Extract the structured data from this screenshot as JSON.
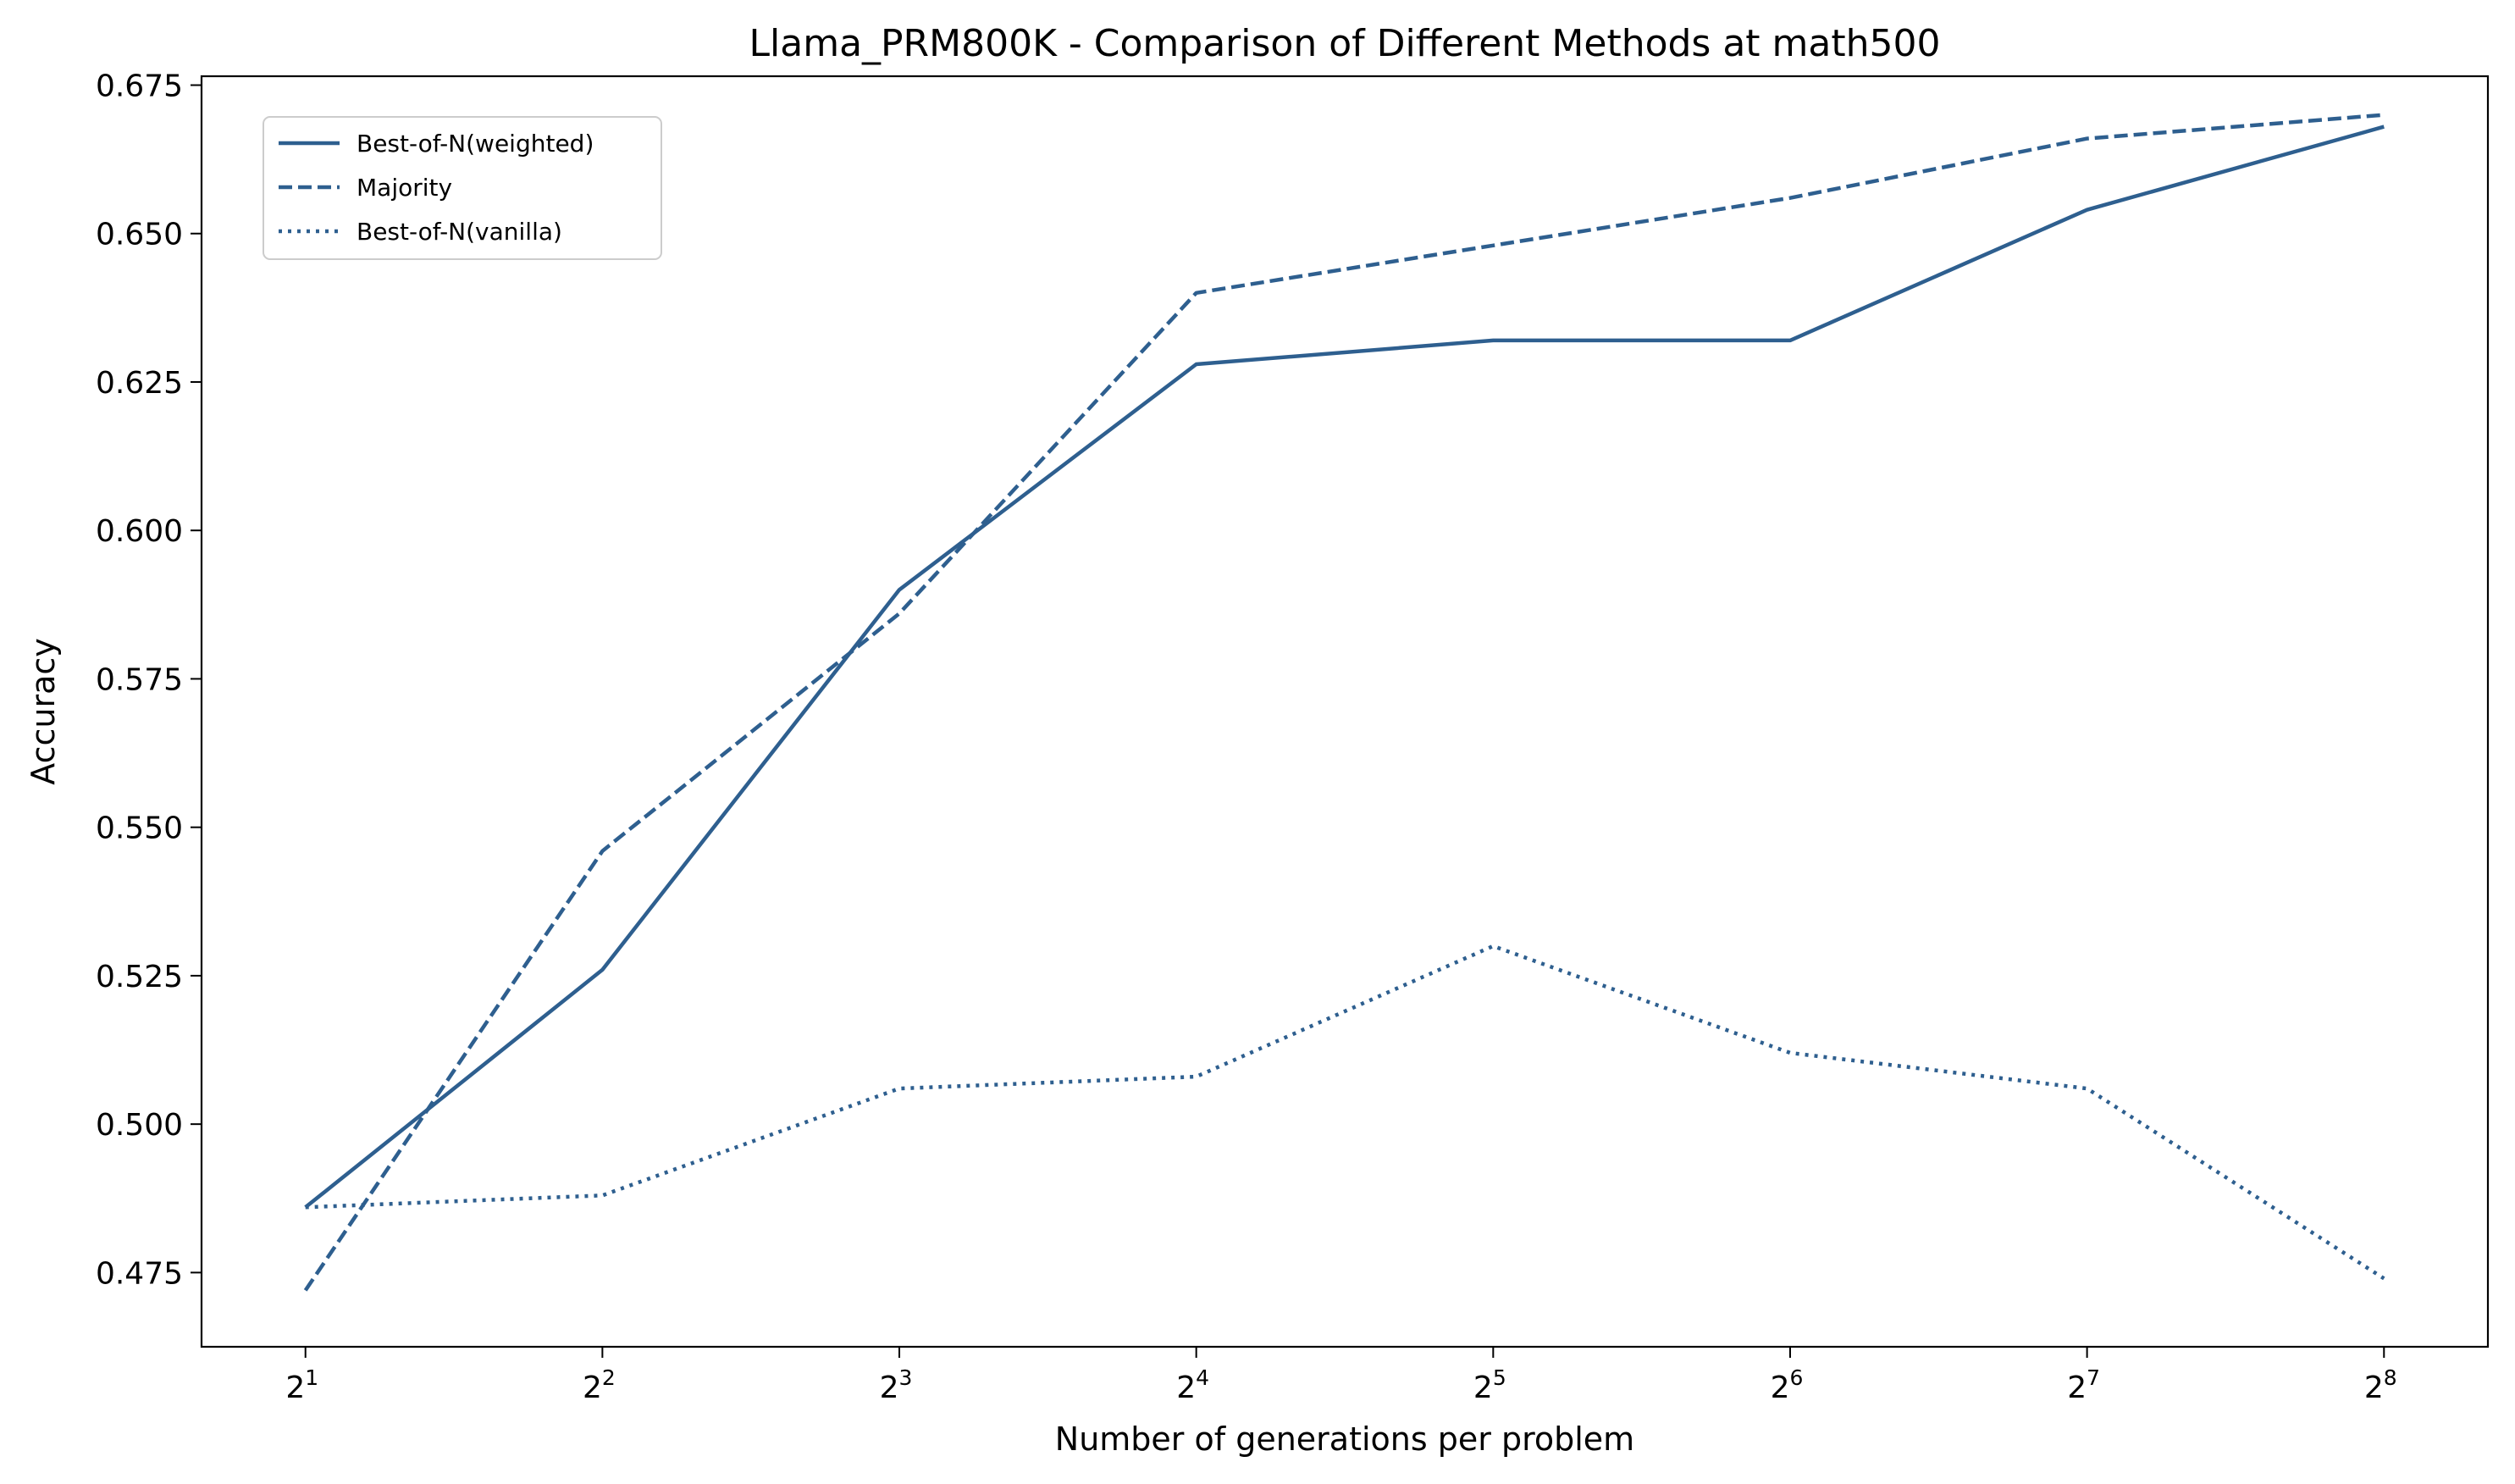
{
  "chart_data": {
    "type": "line",
    "title": "Llama_PRM800K - Comparison of Different Methods at math500",
    "xlabel": "Number of generations per problem",
    "ylabel": "Accuracy",
    "x": [
      1,
      2,
      3,
      4,
      5,
      6,
      7,
      8
    ],
    "x_tick_labels": [
      {
        "base": "2",
        "exp": "1"
      },
      {
        "base": "2",
        "exp": "2"
      },
      {
        "base": "2",
        "exp": "3"
      },
      {
        "base": "2",
        "exp": "4"
      },
      {
        "base": "2",
        "exp": "5"
      },
      {
        "base": "2",
        "exp": "6"
      },
      {
        "base": "2",
        "exp": "7"
      },
      {
        "base": "2",
        "exp": "8"
      }
    ],
    "x_scale": "log2 (exponent shown)",
    "xlim": [
      0.65,
      8.35
    ],
    "ylim": [
      0.4625,
      0.6765
    ],
    "y_ticks": [
      0.475,
      0.5,
      0.525,
      0.55,
      0.575,
      0.6,
      0.625,
      0.65,
      0.675
    ],
    "y_tick_labels": [
      "0.475",
      "0.500",
      "0.525",
      "0.550",
      "0.575",
      "0.600",
      "0.625",
      "0.650",
      "0.675"
    ],
    "grid": false,
    "legend_position": "top-left",
    "line_color": "#2e5f8f",
    "series": [
      {
        "name": "Best-of-N(weighted)",
        "style": "solid",
        "values": [
          0.486,
          0.526,
          0.59,
          0.628,
          0.632,
          0.632,
          0.654,
          0.668
        ]
      },
      {
        "name": "Majority",
        "style": "dashed",
        "values": [
          0.472,
          0.546,
          0.586,
          0.64,
          0.648,
          0.656,
          0.666,
          0.67
        ]
      },
      {
        "name": "Best-of-N(vanilla)",
        "style": "dotted",
        "values": [
          0.486,
          0.488,
          0.506,
          0.508,
          0.53,
          0.512,
          0.506,
          0.474
        ]
      }
    ]
  }
}
